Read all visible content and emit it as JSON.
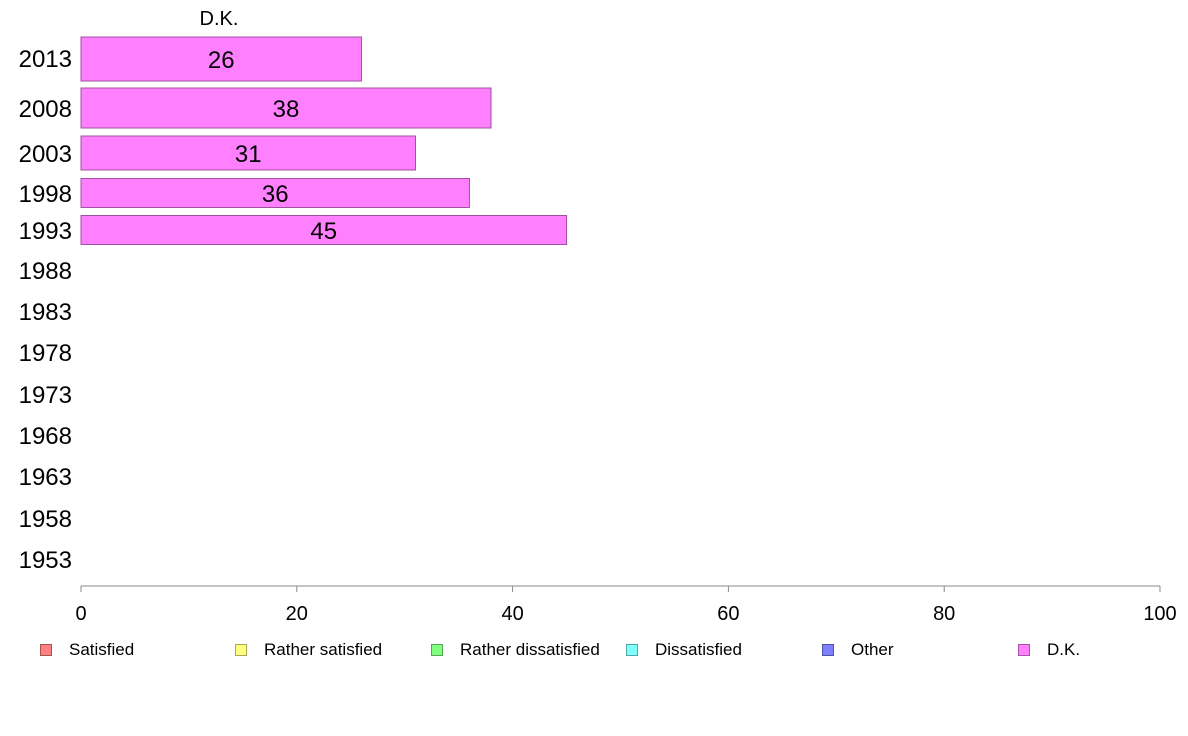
{
  "chart_data": {
    "type": "bar",
    "orientation": "horizontal",
    "series_title": "D.K.",
    "categories": [
      "2013",
      "2008",
      "2003",
      "1998",
      "1993",
      "1988",
      "1983",
      "1978",
      "1973",
      "1968",
      "1963",
      "1958",
      "1953"
    ],
    "series": [
      {
        "name": "D.K.",
        "color": "#ff80ff",
        "values": [
          26,
          38,
          31,
          36,
          45,
          null,
          null,
          null,
          null,
          null,
          null,
          null,
          null
        ],
        "labels": [
          "26",
          "38",
          "31",
          "36",
          "45",
          "",
          "",
          "",
          "",
          "",
          "",
          "",
          ""
        ]
      }
    ],
    "xlim": [
      0,
      100
    ],
    "xticks": [
      "0",
      "20",
      "40",
      "60",
      "80",
      "100"
    ],
    "grid": false,
    "legend_position": "bottom",
    "legend": [
      {
        "label": "Satisfied",
        "color": "#ff8080"
      },
      {
        "label": "Rather satisfied",
        "color": "#ffff80"
      },
      {
        "label": "Rather dissatisfied",
        "color": "#80ff80"
      },
      {
        "label": "Dissatisfied",
        "color": "#80ffff"
      },
      {
        "label": "Other",
        "color": "#8080ff"
      },
      {
        "label": "D.K.",
        "color": "#ff80ff"
      }
    ]
  }
}
